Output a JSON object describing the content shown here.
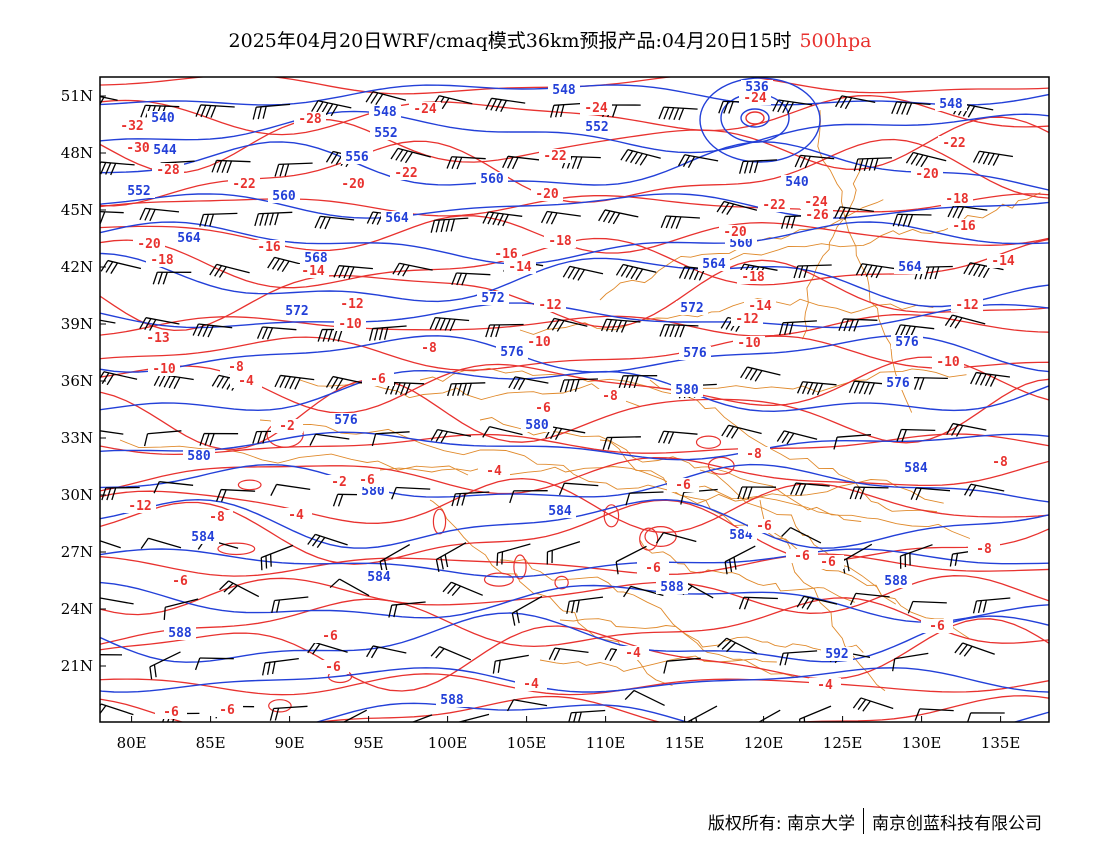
{
  "title": {
    "text": "2025年04月20日WRF/cmaq模式36km预报产品:04月20日15时",
    "level": "500hpa"
  },
  "colors": {
    "height": "#2340d8",
    "temperature": "#e8322f",
    "border": "#e08a2c",
    "wind": "#000000",
    "level": "#e8322f"
  },
  "axes": {
    "lon_labels": [
      "80E",
      "85E",
      "90E",
      "95E",
      "100E",
      "105E",
      "110E",
      "115E",
      "120E",
      "125E",
      "130E",
      "135E"
    ],
    "lat_labels": [
      "51N",
      "48N",
      "45N",
      "42N",
      "39N",
      "36N",
      "33N",
      "30N",
      "27N",
      "24N",
      "21N"
    ]
  },
  "height_labels": [
    "536",
    "540",
    "544",
    "548",
    "552",
    "556",
    "560",
    "564",
    "568",
    "572",
    "576",
    "580",
    "584",
    "588",
    "592"
  ],
  "temp_labels": [
    "-32",
    "-30",
    "-28",
    "-26",
    "-24",
    "-22",
    "-20",
    "-18",
    "-16",
    "-14",
    "-12",
    "-10",
    "-8",
    "-6",
    "-4",
    "-2"
  ],
  "footer": {
    "left": "版权所有: 南京大学",
    "right": "南京创蓝科技有限公司"
  }
}
